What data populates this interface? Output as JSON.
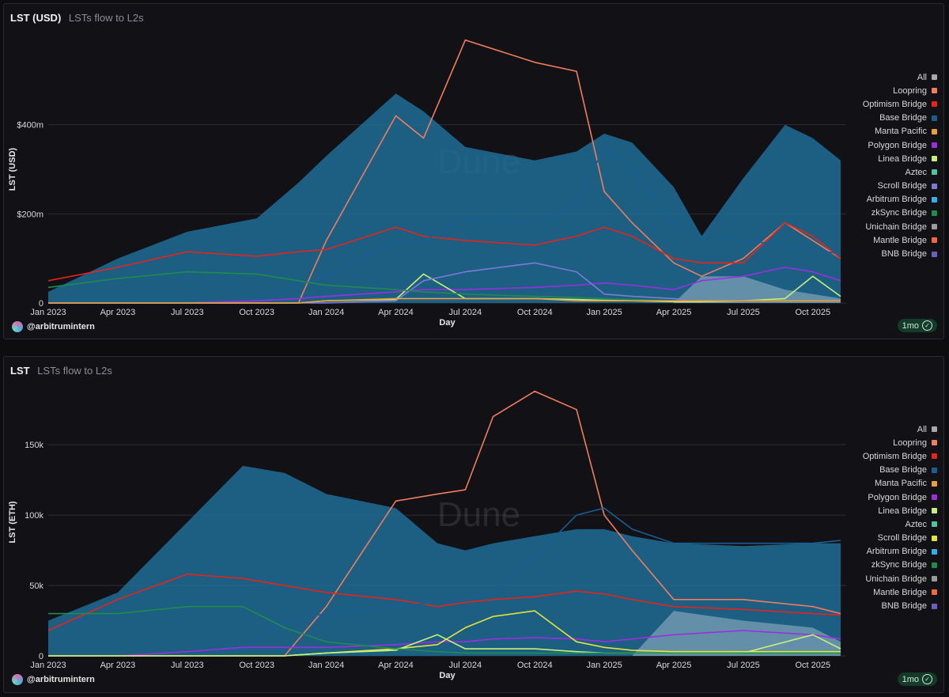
{
  "chart_data": [
    {
      "type": "area+line",
      "title": "LST (USD)",
      "subtitle": "LSTs flow to L2s",
      "xlabel": "Day",
      "ylabel": "LST (USD)",
      "x_ticks": [
        "Jan 2023",
        "Apr 2023",
        "Jul 2023",
        "Oct 2023",
        "Jan 2024",
        "Apr 2024",
        "Jul 2024",
        "Oct 2024",
        "Jan 2025",
        "Apr 2025",
        "Jul 2025",
        "Oct 2025"
      ],
      "y_ticks": [
        {
          "value": 0,
          "label": "0"
        },
        {
          "value": 200,
          "label": "$200m"
        },
        {
          "value": 400,
          "label": "$400m"
        }
      ],
      "ylim": [
        0,
        600
      ],
      "units": "USD millions",
      "x": [
        2023.0,
        2023.25,
        2023.5,
        2023.75,
        2023.9,
        2024.0,
        2024.25,
        2024.35,
        2024.5,
        2024.75,
        2024.9,
        2025.0,
        2025.1,
        2025.25,
        2025.35,
        2025.5,
        2025.65,
        2025.75,
        2025.85
      ],
      "series": [
        {
          "name": "All",
          "style": "area",
          "color": "#1e6d96",
          "values": [
            25,
            100,
            160,
            190,
            270,
            330,
            470,
            430,
            350,
            320,
            340,
            380,
            360,
            260,
            150,
            280,
            400,
            370,
            320
          ]
        },
        {
          "name": "Loopring",
          "style": "line",
          "color": "#f07d5e",
          "values": [
            0,
            0,
            0,
            0,
            0,
            140,
            420,
            370,
            590,
            540,
            520,
            250,
            180,
            90,
            60,
            100,
            180,
            140,
            100
          ]
        },
        {
          "name": "Optimism Bridge",
          "style": "line",
          "color": "#e8231a",
          "values": [
            50,
            80,
            115,
            105,
            115,
            120,
            170,
            150,
            140,
            130,
            150,
            170,
            150,
            100,
            90,
            90,
            180,
            150,
            100
          ]
        },
        {
          "name": "Base Bridge",
          "style": "line",
          "color": "#1a5e94",
          "values": [
            0,
            0,
            0,
            5,
            40,
            60,
            140,
            140,
            190,
            180,
            220,
            350,
            300,
            180,
            150,
            140,
            130,
            120,
            110
          ]
        },
        {
          "name": "Polygon Bridge",
          "style": "line",
          "color": "#9a2fe0",
          "values": [
            0,
            0,
            0,
            5,
            10,
            15,
            25,
            30,
            30,
            35,
            40,
            45,
            40,
            30,
            50,
            60,
            80,
            70,
            50
          ]
        },
        {
          "name": "Linea Bridge",
          "style": "line",
          "color": "#c6f07a",
          "values": [
            0,
            0,
            0,
            0,
            0,
            5,
            8,
            65,
            10,
            10,
            8,
            6,
            5,
            3,
            3,
            5,
            10,
            60,
            15
          ]
        },
        {
          "name": "Scroll Bridge",
          "style": "line",
          "color": "#7b7ad6",
          "values": [
            0,
            0,
            0,
            0,
            0,
            0,
            5,
            50,
            70,
            90,
            70,
            20,
            15,
            10,
            5,
            5,
            5,
            5,
            5
          ]
        },
        {
          "name": "zkSync Bridge",
          "style": "line",
          "color": "#1f8c4e",
          "values": [
            35,
            55,
            70,
            65,
            50,
            40,
            30,
            25,
            20,
            15,
            12,
            10,
            8,
            5,
            5,
            5,
            5,
            5,
            5
          ]
        },
        {
          "name": "Mantle Bridge",
          "style": "line",
          "color": "#e89f3c",
          "values": [
            0,
            0,
            0,
            0,
            0,
            5,
            10,
            10,
            10,
            10,
            5,
            5,
            5,
            5,
            5,
            5,
            5,
            5,
            5
          ]
        },
        {
          "name": "Unichain Bridge",
          "style": "area",
          "color": "#9fb6c8",
          "values": [
            0,
            0,
            0,
            0,
            0,
            0,
            0,
            0,
            0,
            0,
            0,
            0,
            0,
            0,
            60,
            60,
            30,
            20,
            10
          ]
        }
      ]
    },
    {
      "type": "area+line",
      "title": "LST",
      "subtitle": "LSTs flow to L2s",
      "xlabel": "Day",
      "ylabel": "LST (ETH)",
      "x_ticks": [
        "Jan 2023",
        "Apr 2023",
        "Jul 2023",
        "Oct 2023",
        "Jan 2024",
        "Apr 2024",
        "Jul 2024",
        "Oct 2024",
        "Jan 2025",
        "Apr 2025",
        "Jul 2025",
        "Oct 2025"
      ],
      "y_ticks": [
        {
          "value": 0,
          "label": "0"
        },
        {
          "value": 50,
          "label": "50k"
        },
        {
          "value": 100,
          "label": "100k"
        },
        {
          "value": 150,
          "label": "150k"
        }
      ],
      "ylim": [
        0,
        190
      ],
      "units": "thousand ETH",
      "x": [
        2023.0,
        2023.25,
        2023.5,
        2023.7,
        2023.85,
        2024.0,
        2024.25,
        2024.4,
        2024.5,
        2024.6,
        2024.75,
        2024.9,
        2025.0,
        2025.1,
        2025.25,
        2025.5,
        2025.75,
        2025.85
      ],
      "series": [
        {
          "name": "All",
          "style": "area",
          "color": "#1e6d96",
          "values": [
            25,
            45,
            95,
            135,
            130,
            115,
            105,
            80,
            75,
            80,
            85,
            90,
            90,
            85,
            80,
            78,
            80,
            80
          ]
        },
        {
          "name": "Loopring",
          "style": "line",
          "color": "#f07d5e",
          "values": [
            0,
            0,
            0,
            0,
            0,
            35,
            110,
            115,
            118,
            170,
            188,
            175,
            100,
            75,
            40,
            40,
            35,
            30
          ]
        },
        {
          "name": "Optimism Bridge",
          "style": "line",
          "color": "#e8231a",
          "values": [
            18,
            40,
            58,
            55,
            50,
            45,
            40,
            35,
            38,
            40,
            42,
            46,
            44,
            40,
            35,
            33,
            30,
            29
          ]
        },
        {
          "name": "Base Bridge",
          "style": "line",
          "color": "#1a5e94",
          "values": [
            0,
            0,
            0,
            5,
            25,
            30,
            35,
            38,
            40,
            45,
            70,
            100,
            105,
            90,
            80,
            80,
            80,
            82
          ]
        },
        {
          "name": "Polygon Bridge",
          "style": "line",
          "color": "#9a2fe0",
          "values": [
            0,
            0,
            3,
            6,
            6,
            6,
            8,
            10,
            10,
            12,
            13,
            12,
            10,
            12,
            15,
            18,
            15,
            12
          ]
        },
        {
          "name": "Scroll Bridge",
          "style": "line",
          "color": "#e4e43a",
          "values": [
            0,
            0,
            0,
            0,
            0,
            2,
            5,
            8,
            20,
            28,
            32,
            10,
            6,
            4,
            3,
            3,
            3,
            3
          ]
        },
        {
          "name": "Linea Bridge",
          "style": "line",
          "color": "#c6f07a",
          "values": [
            0,
            0,
            0,
            0,
            0,
            2,
            4,
            15,
            5,
            5,
            5,
            3,
            2,
            2,
            2,
            2,
            15,
            5
          ]
        },
        {
          "name": "zkSync Bridge",
          "style": "line",
          "color": "#1f8c4e",
          "values": [
            30,
            30,
            35,
            35,
            20,
            10,
            5,
            3,
            2,
            2,
            2,
            2,
            2,
            2,
            2,
            2,
            2,
            2
          ]
        },
        {
          "name": "Unichain Bridge",
          "style": "area",
          "color": "#9fb6c8",
          "values": [
            0,
            0,
            0,
            0,
            0,
            0,
            0,
            0,
            0,
            0,
            0,
            0,
            0,
            0,
            32,
            25,
            20,
            10
          ]
        }
      ]
    }
  ],
  "panels": [
    {
      "title": "LST (USD)",
      "subtitle": "LSTs flow to L2s",
      "author": "@arbitrumintern",
      "badge": "1mo",
      "watermark": "Dune",
      "legend": [
        {
          "label": "All",
          "color": "#a8a8a8"
        },
        {
          "label": "Loopring",
          "color": "#f07d5e"
        },
        {
          "label": "Optimism Bridge",
          "color": "#e8231a"
        },
        {
          "label": "Base Bridge",
          "color": "#1a5e94"
        },
        {
          "label": "Manta Pacific",
          "color": "#e89f3c"
        },
        {
          "label": "Polygon Bridge",
          "color": "#9a2fe0"
        },
        {
          "label": "Linea Bridge",
          "color": "#c6f07a"
        },
        {
          "label": "Aztec",
          "color": "#4fc3a1"
        },
        {
          "label": "Scroll Bridge",
          "color": "#7b7ad6"
        },
        {
          "label": "Arbitrum Bridge",
          "color": "#2fb0ec"
        },
        {
          "label": "zkSync Bridge",
          "color": "#1f8c4e"
        },
        {
          "label": "Unichain Bridge",
          "color": "#9a9a9a"
        },
        {
          "label": "Mantle Bridge",
          "color": "#ef6a3a"
        },
        {
          "label": "BNB Bridge",
          "color": "#6a5ec0"
        }
      ]
    },
    {
      "title": "LST",
      "subtitle": "LSTs flow to L2s",
      "author": "@arbitrumintern",
      "badge": "1mo",
      "watermark": "Dune",
      "legend": [
        {
          "label": "All",
          "color": "#a8a8a8"
        },
        {
          "label": "Loopring",
          "color": "#f07d5e"
        },
        {
          "label": "Optimism Bridge",
          "color": "#e8231a"
        },
        {
          "label": "Base Bridge",
          "color": "#1a5e94"
        },
        {
          "label": "Manta Pacific",
          "color": "#e89f3c"
        },
        {
          "label": "Polygon Bridge",
          "color": "#9a2fe0"
        },
        {
          "label": "Linea Bridge",
          "color": "#c6f07a"
        },
        {
          "label": "Aztec",
          "color": "#4fc3a1"
        },
        {
          "label": "Scroll Bridge",
          "color": "#e4e43a"
        },
        {
          "label": "Arbitrum Bridge",
          "color": "#2fb0ec"
        },
        {
          "label": "zkSync Bridge",
          "color": "#1f8c4e"
        },
        {
          "label": "Unichain Bridge",
          "color": "#9a9a9a"
        },
        {
          "label": "Mantle Bridge",
          "color": "#ef6a3a"
        },
        {
          "label": "BNB Bridge",
          "color": "#6a5ec0"
        }
      ]
    }
  ]
}
